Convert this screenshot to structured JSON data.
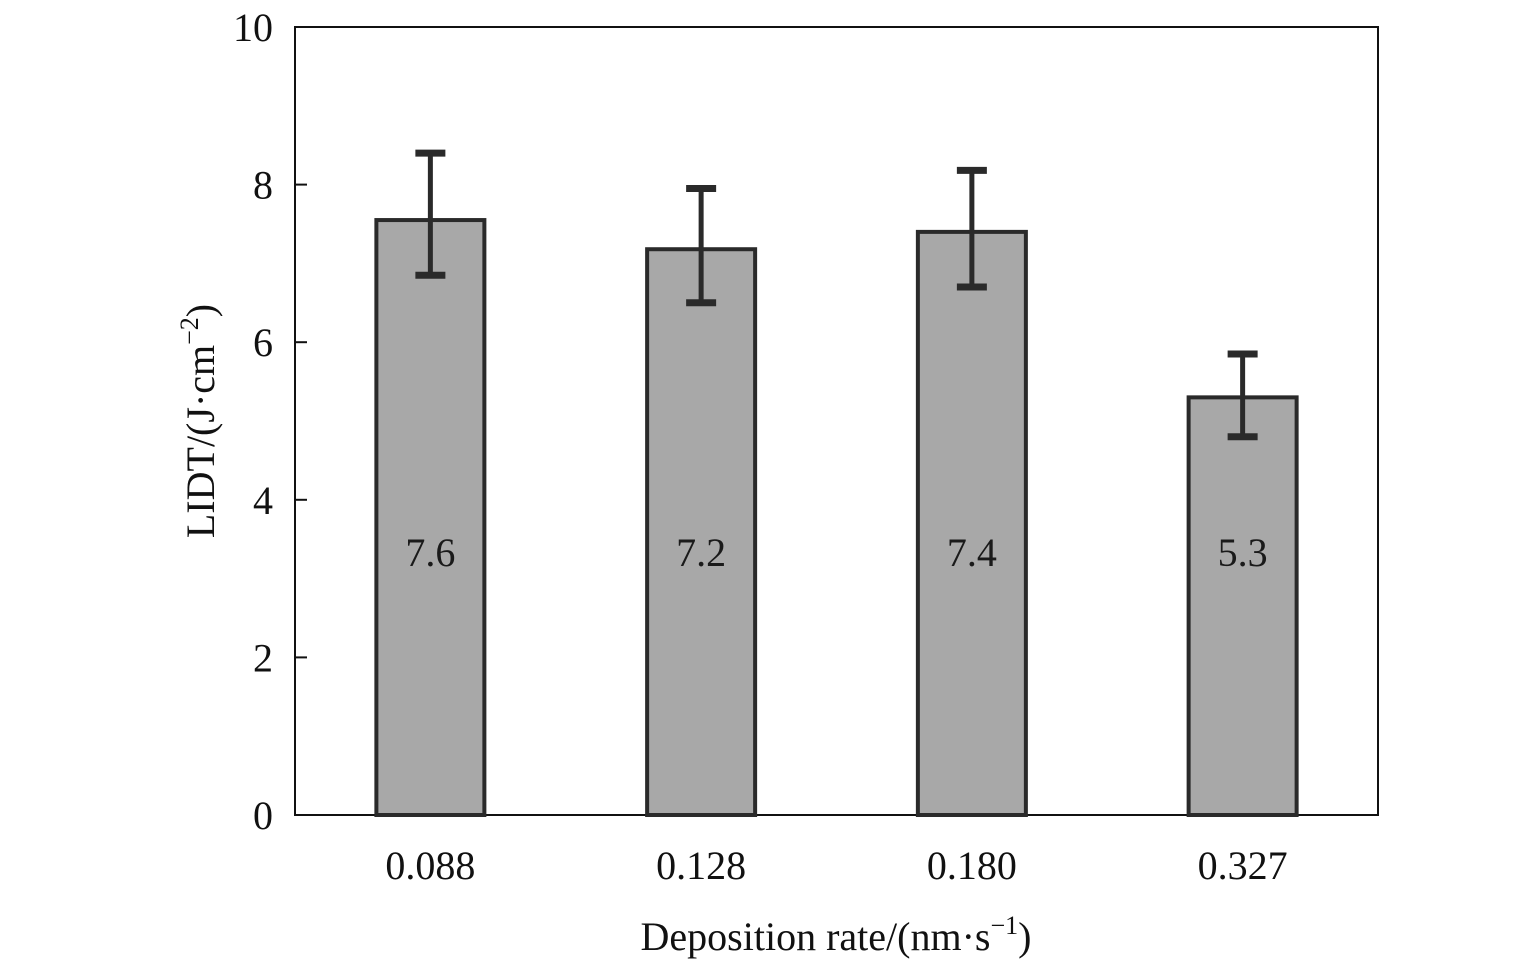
{
  "chart_data": {
    "type": "bar",
    "categories": [
      "0.088",
      "0.128",
      "0.180",
      "0.327"
    ],
    "values": [
      7.55,
      7.18,
      7.4,
      5.3
    ],
    "data_labels": [
      "7.6",
      "7.2",
      "7.4",
      "5.3"
    ],
    "error_high": [
      8.4,
      7.95,
      8.18,
      5.85
    ],
    "error_low": [
      6.85,
      6.5,
      6.7,
      4.8
    ],
    "xlabel": {
      "main": "Deposition rate/(nm·s",
      "sup": "−1",
      "tail": ")"
    },
    "ylabel": {
      "main": "LIDT/(J·cm",
      "sup": "−2",
      "tail": ")"
    },
    "ylim": [
      0,
      10
    ],
    "yticks": [
      "0",
      "2",
      "4",
      "6",
      "8",
      "10"
    ],
    "grid": false,
    "colors": {
      "bar_fill": "#a8a8a8",
      "bar_edge": "#2a2a2a",
      "axis": "#111111"
    }
  }
}
